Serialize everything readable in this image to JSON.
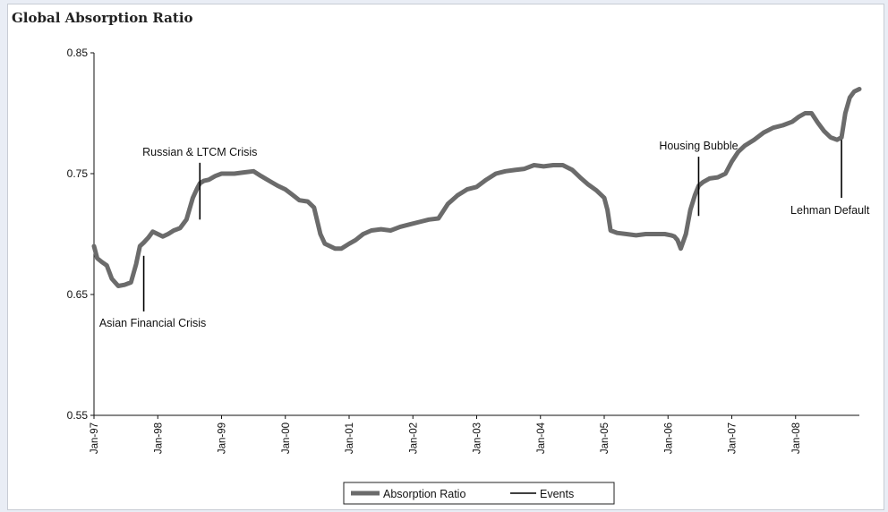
{
  "chart_data": {
    "type": "line",
    "title": "Global Absorption Ratio",
    "xlabel": "",
    "ylabel": "",
    "ylim": [
      0.55,
      0.85
    ],
    "y_ticks": [
      "0.55",
      "0.65",
      "0.75",
      "0.85"
    ],
    "x_ticks": [
      "Jan-97",
      "Jan-98",
      "Jan-99",
      "Jan-00",
      "Jan-01",
      "Jan-02",
      "Jan-03",
      "Jan-04",
      "Jan-05",
      "Jan-06",
      "Jan-07",
      "Jan-08"
    ],
    "xlim_years": [
      1997.0,
      2009.0
    ],
    "grid": false,
    "legend_position": "bottom",
    "legend": [
      {
        "label": "Absorption Ratio",
        "style": "thick-gray"
      },
      {
        "label": "Events",
        "style": "thin-black"
      }
    ],
    "colors": {
      "series": "#6b6b6b",
      "events": "#000000"
    },
    "series": [
      {
        "name": "Absorption Ratio",
        "x": [
          1997.0,
          1997.05,
          1997.12,
          1997.2,
          1997.28,
          1997.38,
          1997.48,
          1997.58,
          1997.66,
          1997.72,
          1997.78,
          1997.85,
          1997.92,
          1998.0,
          1998.08,
          1998.16,
          1998.25,
          1998.35,
          1998.45,
          1998.55,
          1998.62,
          1998.66,
          1998.72,
          1998.8,
          1998.9,
          1999.0,
          1999.1,
          1999.2,
          1999.35,
          1999.5,
          1999.62,
          1999.75,
          1999.88,
          2000.0,
          2000.1,
          2000.22,
          2000.35,
          2000.45,
          2000.55,
          2000.62,
          2000.7,
          2000.78,
          2000.88,
          2001.0,
          2001.1,
          2001.22,
          2001.35,
          2001.5,
          2001.65,
          2001.8,
          2001.95,
          2002.1,
          2002.25,
          2002.4,
          2002.55,
          2002.7,
          2002.85,
          2003.0,
          2003.15,
          2003.3,
          2003.45,
          2003.6,
          2003.75,
          2003.9,
          2004.05,
          2004.2,
          2004.35,
          2004.5,
          2004.62,
          2004.75,
          2004.88,
          2005.0,
          2005.05,
          2005.1,
          2005.2,
          2005.35,
          2005.5,
          2005.65,
          2005.8,
          2005.95,
          2006.05,
          2006.1,
          2006.15,
          2006.2,
          2006.28,
          2006.35,
          2006.42,
          2006.48,
          2006.55,
          2006.65,
          2006.78,
          2006.9,
          2007.0,
          2007.1,
          2007.2,
          2007.35,
          2007.5,
          2007.65,
          2007.8,
          2007.95,
          2008.05,
          2008.15,
          2008.25,
          2008.35,
          2008.45,
          2008.55,
          2008.65,
          2008.72,
          2008.78,
          2008.85,
          2008.92,
          2009.0
        ],
        "y": [
          0.69,
          0.68,
          0.677,
          0.674,
          0.663,
          0.657,
          0.658,
          0.66,
          0.675,
          0.69,
          0.693,
          0.697,
          0.702,
          0.7,
          0.698,
          0.7,
          0.703,
          0.705,
          0.712,
          0.73,
          0.738,
          0.742,
          0.744,
          0.745,
          0.748,
          0.75,
          0.75,
          0.75,
          0.751,
          0.752,
          0.748,
          0.744,
          0.74,
          0.737,
          0.733,
          0.728,
          0.727,
          0.722,
          0.7,
          0.692,
          0.69,
          0.688,
          0.688,
          0.692,
          0.695,
          0.7,
          0.703,
          0.704,
          0.703,
          0.706,
          0.708,
          0.71,
          0.712,
          0.713,
          0.725,
          0.732,
          0.737,
          0.739,
          0.745,
          0.75,
          0.752,
          0.753,
          0.754,
          0.757,
          0.756,
          0.757,
          0.757,
          0.753,
          0.747,
          0.741,
          0.736,
          0.73,
          0.72,
          0.703,
          0.701,
          0.7,
          0.699,
          0.7,
          0.7,
          0.7,
          0.699,
          0.698,
          0.695,
          0.688,
          0.7,
          0.72,
          0.732,
          0.74,
          0.743,
          0.746,
          0.747,
          0.75,
          0.76,
          0.768,
          0.773,
          0.778,
          0.784,
          0.788,
          0.79,
          0.793,
          0.797,
          0.8,
          0.8,
          0.792,
          0.785,
          0.78,
          0.778,
          0.78,
          0.8,
          0.813,
          0.818,
          0.82
        ]
      }
    ],
    "events": [
      {
        "label": "Asian Financial Crisis",
        "x": 1997.78,
        "y_from": 0.682,
        "y_to": 0.636,
        "label_pos": "below"
      },
      {
        "label": "Russian & LTCM Crisis",
        "x": 1998.66,
        "y_from": 0.712,
        "y_to": 0.759,
        "label_pos": "above"
      },
      {
        "label": "Housing Bubble",
        "x": 2006.48,
        "y_from": 0.715,
        "y_to": 0.764,
        "label_pos": "above"
      },
      {
        "label": "Lehman Default",
        "x": 2008.72,
        "y_from": 0.778,
        "y_to": 0.73,
        "label_pos": "below"
      }
    ]
  }
}
